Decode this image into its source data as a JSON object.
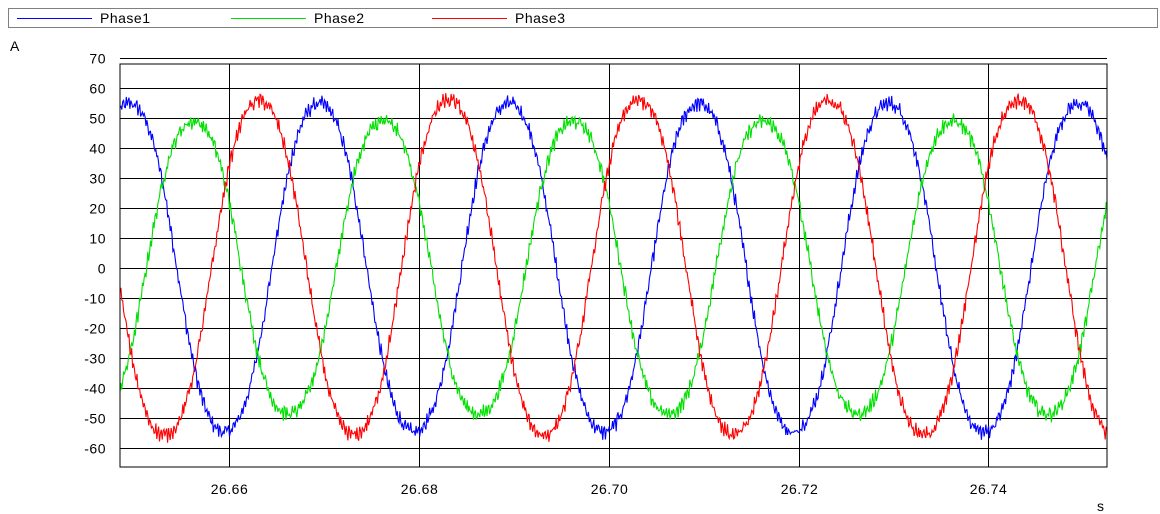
{
  "chart_data": {
    "type": "line",
    "xlabel": "s",
    "ylabel": "A",
    "xlim": [
      26.6485,
      26.7525
    ],
    "ylim": [
      -66.5,
      68
    ],
    "x_ticks": [
      26.66,
      26.68,
      26.7,
      26.72,
      26.74
    ],
    "x_tick_labels": [
      "26.66",
      "26.68",
      "26.70",
      "26.72",
      "26.74"
    ],
    "y_ticks": [
      70,
      60,
      50,
      40,
      30,
      20,
      10,
      0,
      -10,
      -20,
      -30,
      -40,
      -50,
      -60
    ],
    "y_tick_labels": [
      "70",
      "60",
      "50",
      "40",
      "30",
      "20",
      "10",
      "0",
      "-10",
      "-20",
      "-30",
      "-40",
      "-50",
      "-60"
    ],
    "grid": true,
    "legend_position": "top",
    "frequency_hz": 50,
    "series": [
      {
        "name": "Phase1",
        "color": "#0000ff",
        "amplitude": 57,
        "phase_deg": 72
      },
      {
        "name": "Phase2",
        "color": "#00e000",
        "amplitude": 51,
        "phase_deg": -50
      },
      {
        "name": "Phase3",
        "color": "#ff0000",
        "amplitude": 58,
        "phase_deg": 186
      }
    ]
  }
}
